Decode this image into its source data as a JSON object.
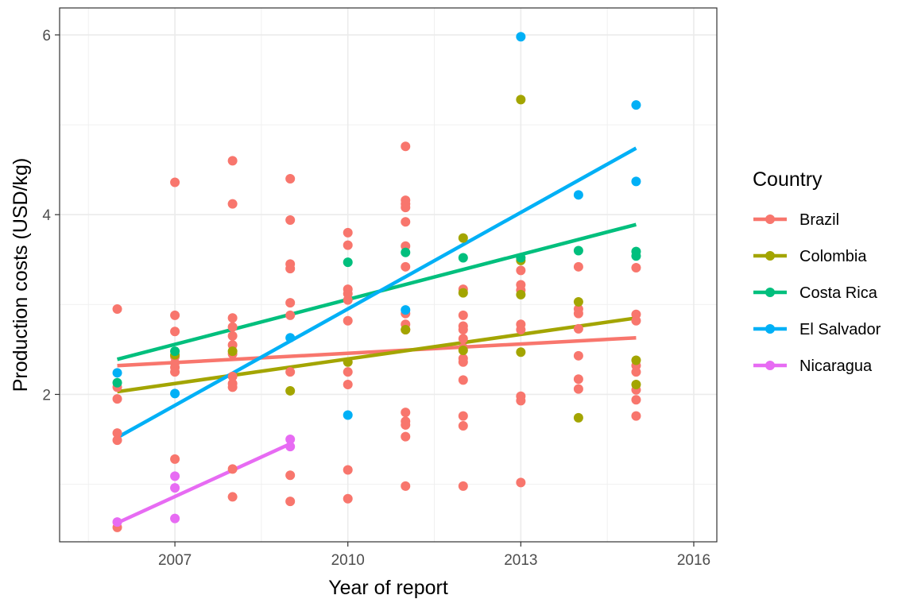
{
  "chart_data": {
    "type": "scatter",
    "xlabel": "Year of report",
    "ylabel": "Production costs (USD/kg)",
    "xlim": [
      2005.0,
      2016.4
    ],
    "ylim": [
      0.36,
      6.3
    ],
    "x_ticks": [
      2007,
      2010,
      2013,
      2016
    ],
    "x_tick_labels": [
      "2007",
      "2010",
      "2013",
      "2016"
    ],
    "y_ticks": [
      2,
      4,
      6
    ],
    "y_tick_labels": [
      "2",
      "4",
      "6"
    ],
    "grid": true,
    "legend_title": "Country",
    "legend_placement": "right",
    "series": [
      {
        "name": "Brazil",
        "color": "#F8766D",
        "points": [
          [
            2006,
            2.95
          ],
          [
            2006,
            2.08
          ],
          [
            2006,
            1.95
          ],
          [
            2006,
            1.57
          ],
          [
            2006,
            1.49
          ],
          [
            2006,
            0.52
          ],
          [
            2007,
            4.36
          ],
          [
            2007,
            2.88
          ],
          [
            2007,
            2.7
          ],
          [
            2007,
            2.42
          ],
          [
            2007,
            2.35
          ],
          [
            2007,
            2.3
          ],
          [
            2007,
            2.25
          ],
          [
            2007,
            1.28
          ],
          [
            2008,
            4.6
          ],
          [
            2008,
            4.12
          ],
          [
            2008,
            2.85
          ],
          [
            2008,
            2.75
          ],
          [
            2008,
            2.65
          ],
          [
            2008,
            2.55
          ],
          [
            2008,
            2.45
          ],
          [
            2008,
            2.2
          ],
          [
            2008,
            2.12
          ],
          [
            2008,
            2.08
          ],
          [
            2008,
            1.17
          ],
          [
            2008,
            0.86
          ],
          [
            2009,
            4.4
          ],
          [
            2009,
            3.94
          ],
          [
            2009,
            3.45
          ],
          [
            2009,
            3.4
          ],
          [
            2009,
            3.02
          ],
          [
            2009,
            2.88
          ],
          [
            2009,
            2.25
          ],
          [
            2009,
            1.1
          ],
          [
            2009,
            0.81
          ],
          [
            2010,
            3.8
          ],
          [
            2010,
            3.66
          ],
          [
            2010,
            3.17
          ],
          [
            2010,
            3.12
          ],
          [
            2010,
            3.05
          ],
          [
            2010,
            2.82
          ],
          [
            2010,
            2.25
          ],
          [
            2010,
            2.11
          ],
          [
            2010,
            1.16
          ],
          [
            2010,
            0.84
          ],
          [
            2011,
            4.76
          ],
          [
            2011,
            4.16
          ],
          [
            2011,
            4.12
          ],
          [
            2011,
            4.08
          ],
          [
            2011,
            3.92
          ],
          [
            2011,
            3.65
          ],
          [
            2011,
            3.42
          ],
          [
            2011,
            2.9
          ],
          [
            2011,
            2.78
          ],
          [
            2011,
            2.72
          ],
          [
            2011,
            1.8
          ],
          [
            2011,
            1.7
          ],
          [
            2011,
            1.66
          ],
          [
            2011,
            1.53
          ],
          [
            2011,
            0.98
          ],
          [
            2012,
            3.17
          ],
          [
            2012,
            2.88
          ],
          [
            2012,
            2.76
          ],
          [
            2012,
            2.72
          ],
          [
            2012,
            2.62
          ],
          [
            2012,
            2.52
          ],
          [
            2012,
            2.4
          ],
          [
            2012,
            2.36
          ],
          [
            2012,
            2.16
          ],
          [
            2012,
            1.76
          ],
          [
            2012,
            1.65
          ],
          [
            2012,
            0.98
          ],
          [
            2013,
            3.38
          ],
          [
            2013,
            3.22
          ],
          [
            2013,
            3.16
          ],
          [
            2013,
            2.78
          ],
          [
            2013,
            2.72
          ],
          [
            2013,
            1.98
          ],
          [
            2013,
            1.93
          ],
          [
            2013,
            1.02
          ],
          [
            2014,
            3.42
          ],
          [
            2014,
            2.95
          ],
          [
            2014,
            2.9
          ],
          [
            2014,
            2.73
          ],
          [
            2014,
            2.43
          ],
          [
            2014,
            2.17
          ],
          [
            2014,
            2.06
          ],
          [
            2015,
            3.41
          ],
          [
            2015,
            2.89
          ],
          [
            2015,
            2.82
          ],
          [
            2015,
            2.32
          ],
          [
            2015,
            2.25
          ],
          [
            2015,
            2.05
          ],
          [
            2015,
            1.94
          ],
          [
            2015,
            1.76
          ]
        ],
        "trend": [
          [
            2006,
            2.32
          ],
          [
            2015,
            2.63
          ]
        ]
      },
      {
        "name": "Colombia",
        "color": "#A3A500",
        "points": [
          [
            2007,
            2.44
          ],
          [
            2008,
            2.48
          ],
          [
            2009,
            2.04
          ],
          [
            2010,
            2.36
          ],
          [
            2011,
            2.72
          ],
          [
            2012,
            3.74
          ],
          [
            2012,
            3.13
          ],
          [
            2012,
            2.49
          ],
          [
            2013,
            5.28
          ],
          [
            2013,
            3.49
          ],
          [
            2013,
            3.11
          ],
          [
            2013,
            2.47
          ],
          [
            2014,
            3.03
          ],
          [
            2014,
            1.74
          ],
          [
            2015,
            2.38
          ],
          [
            2015,
            2.11
          ]
        ],
        "trend": [
          [
            2006,
            2.03
          ],
          [
            2015,
            2.85
          ]
        ]
      },
      {
        "name": "Costa Rica",
        "color": "#00BF7D",
        "points": [
          [
            2006,
            2.13
          ],
          [
            2007,
            2.48
          ],
          [
            2010,
            3.47
          ],
          [
            2011,
            3.58
          ],
          [
            2012,
            3.52
          ],
          [
            2013,
            3.52
          ],
          [
            2014,
            3.6
          ],
          [
            2015,
            3.59
          ],
          [
            2015,
            3.54
          ]
        ],
        "trend": [
          [
            2006,
            2.39
          ],
          [
            2015,
            3.89
          ]
        ]
      },
      {
        "name": "El Salvador",
        "color": "#00B0F6",
        "points": [
          [
            2006,
            2.24
          ],
          [
            2007,
            2.01
          ],
          [
            2009,
            2.63
          ],
          [
            2010,
            1.77
          ],
          [
            2011,
            2.94
          ],
          [
            2013,
            5.98
          ],
          [
            2014,
            4.22
          ],
          [
            2015,
            5.22
          ],
          [
            2015,
            4.37
          ]
        ],
        "trend": [
          [
            2006,
            1.52
          ],
          [
            2015,
            4.74
          ]
        ]
      },
      {
        "name": "Nicaragua",
        "color": "#E76BF3",
        "points": [
          [
            2006,
            0.58
          ],
          [
            2007,
            1.09
          ],
          [
            2007,
            0.96
          ],
          [
            2007,
            0.62
          ],
          [
            2009,
            1.5
          ],
          [
            2009,
            1.42
          ]
        ],
        "trend": [
          [
            2006,
            0.57
          ],
          [
            2009,
            1.45
          ]
        ]
      }
    ]
  }
}
